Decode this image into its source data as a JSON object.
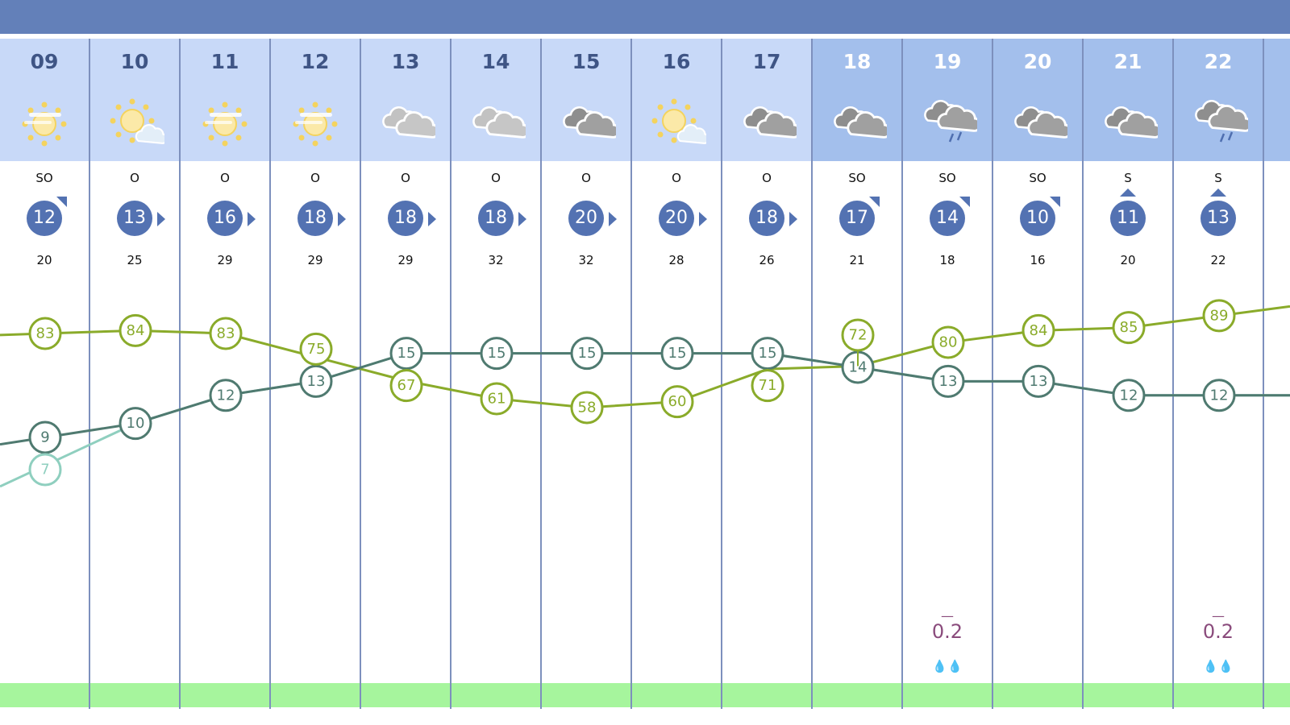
{
  "colors": {
    "header_bar": "#6380b9",
    "header_light": "#c8d9f8",
    "header_dark": "#a3bfec",
    "wind_badge": "#5372b2",
    "humidity": "#8aab2a",
    "temperature": "#4f7a70",
    "feels_like": "#8fcfbf",
    "rain_text": "#8a4b7c",
    "green_bar": "#a6f59d"
  },
  "hours": [
    {
      "hour": "09",
      "icon": "sun-haze-icon",
      "dir": "SO",
      "arrow": "ne",
      "wind": "12",
      "gust": "20",
      "dark": false
    },
    {
      "hour": "10",
      "icon": "sun-cloud-icon",
      "dir": "O",
      "arrow": "e",
      "wind": "13",
      "gust": "25",
      "dark": false
    },
    {
      "hour": "11",
      "icon": "sun-haze-icon",
      "dir": "O",
      "arrow": "e",
      "wind": "16",
      "gust": "29",
      "dark": false
    },
    {
      "hour": "12",
      "icon": "sun-haze-icon",
      "dir": "O",
      "arrow": "e",
      "wind": "18",
      "gust": "29",
      "dark": false
    },
    {
      "hour": "13",
      "icon": "light-clouds-icon",
      "dir": "O",
      "arrow": "e",
      "wind": "18",
      "gust": "29",
      "dark": false
    },
    {
      "hour": "14",
      "icon": "light-clouds-icon",
      "dir": "O",
      "arrow": "e",
      "wind": "18",
      "gust": "32",
      "dark": false
    },
    {
      "hour": "15",
      "icon": "clouds-icon",
      "dir": "O",
      "arrow": "e",
      "wind": "20",
      "gust": "32",
      "dark": false
    },
    {
      "hour": "16",
      "icon": "sun-cloud-icon",
      "dir": "O",
      "arrow": "e",
      "wind": "20",
      "gust": "28",
      "dark": false
    },
    {
      "hour": "17",
      "icon": "clouds-icon",
      "dir": "O",
      "arrow": "e",
      "wind": "18",
      "gust": "26",
      "dark": false
    },
    {
      "hour": "18",
      "icon": "clouds-icon",
      "dir": "SO",
      "arrow": "ne",
      "wind": "17",
      "gust": "21",
      "dark": true
    },
    {
      "hour": "19",
      "icon": "rain-clouds-icon",
      "dir": "SO",
      "arrow": "ne",
      "wind": "14",
      "gust": "18",
      "dark": true,
      "rain": "0.2",
      "rain_dash": "—"
    },
    {
      "hour": "20",
      "icon": "clouds-icon",
      "dir": "SO",
      "arrow": "ne",
      "wind": "10",
      "gust": "16",
      "dark": true
    },
    {
      "hour": "21",
      "icon": "clouds-icon",
      "dir": "S",
      "arrow": "n",
      "wind": "11",
      "gust": "20",
      "dark": true
    },
    {
      "hour": "22",
      "icon": "rain-clouds-icon",
      "dir": "S",
      "arrow": "n",
      "wind": "13",
      "gust": "22",
      "dark": true,
      "rain": "0.2",
      "rain_dash": "—"
    }
  ],
  "chart_data": {
    "type": "line",
    "categories": [
      "09",
      "10",
      "11",
      "12",
      "13",
      "14",
      "15",
      "16",
      "17",
      "18",
      "19",
      "20",
      "21",
      "22"
    ],
    "series": [
      {
        "key": "humidity",
        "values": [
          83,
          84,
          83,
          75,
          67,
          61,
          58,
          60,
          71,
          72,
          80,
          84,
          85,
          89
        ]
      },
      {
        "key": "temperature",
        "values": [
          9,
          10,
          12,
          13,
          15,
          15,
          15,
          15,
          15,
          14,
          13,
          13,
          12,
          12
        ]
      },
      {
        "key": "feels_like",
        "values": [
          7,
          10,
          12,
          13,
          15,
          15,
          15,
          15,
          15,
          14,
          13,
          13,
          12,
          12
        ],
        "labels_shown": [
          "09"
        ]
      }
    ]
  }
}
